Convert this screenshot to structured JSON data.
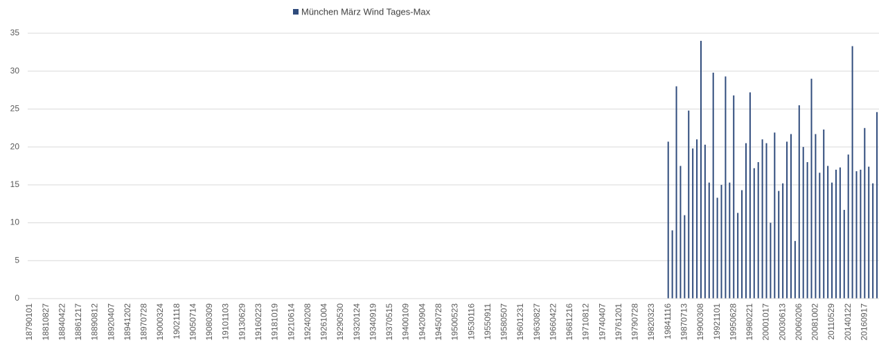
{
  "chart_data": {
    "type": "bar",
    "categories": [
      "18790101",
      null,
      null,
      null,
      "18810827",
      null,
      null,
      null,
      "18840422",
      null,
      null,
      null,
      "18861217",
      null,
      null,
      null,
      "18890812",
      null,
      null,
      null,
      "18920407",
      null,
      null,
      null,
      "18941202",
      null,
      null,
      null,
      "18970728",
      null,
      null,
      null,
      "19000324",
      null,
      null,
      null,
      "19021118",
      null,
      null,
      null,
      "19050714",
      null,
      null,
      null,
      "19080309",
      null,
      null,
      null,
      "19101103",
      null,
      null,
      null,
      "19130629",
      null,
      null,
      null,
      "19160223",
      null,
      null,
      null,
      "19181019",
      null,
      null,
      null,
      "19210614",
      null,
      null,
      null,
      "19240208",
      null,
      null,
      null,
      "19261004",
      null,
      null,
      null,
      "19290530",
      null,
      null,
      null,
      "19320124",
      null,
      null,
      null,
      "19340919",
      null,
      null,
      null,
      "19370515",
      null,
      null,
      null,
      "19400109",
      null,
      null,
      null,
      "19420904",
      null,
      null,
      null,
      "19450728",
      null,
      null,
      null,
      "19500523",
      null,
      null,
      null,
      "19530116",
      null,
      null,
      null,
      "19550911",
      null,
      null,
      null,
      "19580507",
      null,
      null,
      null,
      "19601231",
      null,
      null,
      null,
      "19630827",
      null,
      null,
      null,
      "19660422",
      null,
      null,
      null,
      "19681216",
      null,
      null,
      null,
      "19710812",
      null,
      null,
      null,
      "19740407",
      null,
      null,
      null,
      "19761201",
      null,
      null,
      null,
      "19790728",
      null,
      null,
      null,
      "19820323",
      null,
      null,
      null,
      "19841116",
      null,
      null,
      null,
      "19870713",
      null,
      null,
      null,
      "19900308",
      null,
      null,
      null,
      "19921101",
      null,
      null,
      null,
      "19950628",
      null,
      null,
      null,
      "19980221",
      null,
      null,
      null,
      "20001017",
      null,
      null,
      null,
      "20030613",
      null,
      null,
      null,
      "20060206",
      null,
      null,
      null,
      "20081002",
      null,
      null,
      null,
      "20110529",
      null,
      null,
      null,
      "20140122",
      null,
      null,
      null,
      "20160917",
      null,
      null,
      null
    ],
    "series": [
      {
        "name": "München  März Wind Tages-Max",
        "color": "#2f4b7c",
        "values": [
          null,
          null,
          null,
          null,
          null,
          null,
          null,
          null,
          null,
          null,
          null,
          null,
          null,
          null,
          null,
          null,
          null,
          null,
          null,
          null,
          null,
          null,
          null,
          null,
          null,
          null,
          null,
          null,
          null,
          null,
          null,
          null,
          null,
          null,
          null,
          null,
          null,
          null,
          null,
          null,
          null,
          null,
          null,
          null,
          null,
          null,
          null,
          null,
          null,
          null,
          null,
          null,
          null,
          null,
          null,
          null,
          null,
          null,
          null,
          null,
          null,
          null,
          null,
          null,
          null,
          null,
          null,
          null,
          null,
          null,
          null,
          null,
          null,
          null,
          null,
          null,
          null,
          null,
          null,
          null,
          null,
          null,
          null,
          null,
          null,
          null,
          null,
          null,
          null,
          null,
          null,
          null,
          null,
          null,
          null,
          null,
          null,
          null,
          null,
          null,
          null,
          null,
          null,
          null,
          null,
          null,
          null,
          null,
          null,
          null,
          null,
          null,
          null,
          null,
          null,
          null,
          null,
          null,
          null,
          null,
          null,
          null,
          null,
          null,
          null,
          null,
          null,
          null,
          null,
          null,
          null,
          null,
          null,
          null,
          null,
          null,
          null,
          null,
          null,
          null,
          null,
          null,
          null,
          null,
          null,
          null,
          null,
          null,
          null,
          null,
          null,
          null,
          null,
          null,
          null,
          null,
          20.7,
          9,
          28,
          17.5,
          11,
          24.8,
          19.8,
          21,
          34,
          20.3,
          15.3,
          29.8,
          13.3,
          15,
          29.3,
          15.3,
          26.8,
          11.3,
          14.3,
          20.5,
          27.2,
          17.2,
          18,
          21,
          20.5,
          10,
          21.9,
          14.2,
          15.2,
          20.7,
          21.7,
          7.6,
          25.5,
          20,
          18,
          29,
          21.7,
          16.6,
          22.3,
          17.5,
          15.3,
          17,
          17.3,
          11.7,
          19,
          33.3,
          16.8,
          17,
          22.5,
          17.4,
          15.2,
          24.6
        ]
      }
    ],
    "ylim": [
      0,
      35
    ],
    "yticks": [
      0,
      5,
      10,
      15,
      20,
      25,
      30,
      35
    ],
    "grid": true,
    "legend": "top"
  }
}
